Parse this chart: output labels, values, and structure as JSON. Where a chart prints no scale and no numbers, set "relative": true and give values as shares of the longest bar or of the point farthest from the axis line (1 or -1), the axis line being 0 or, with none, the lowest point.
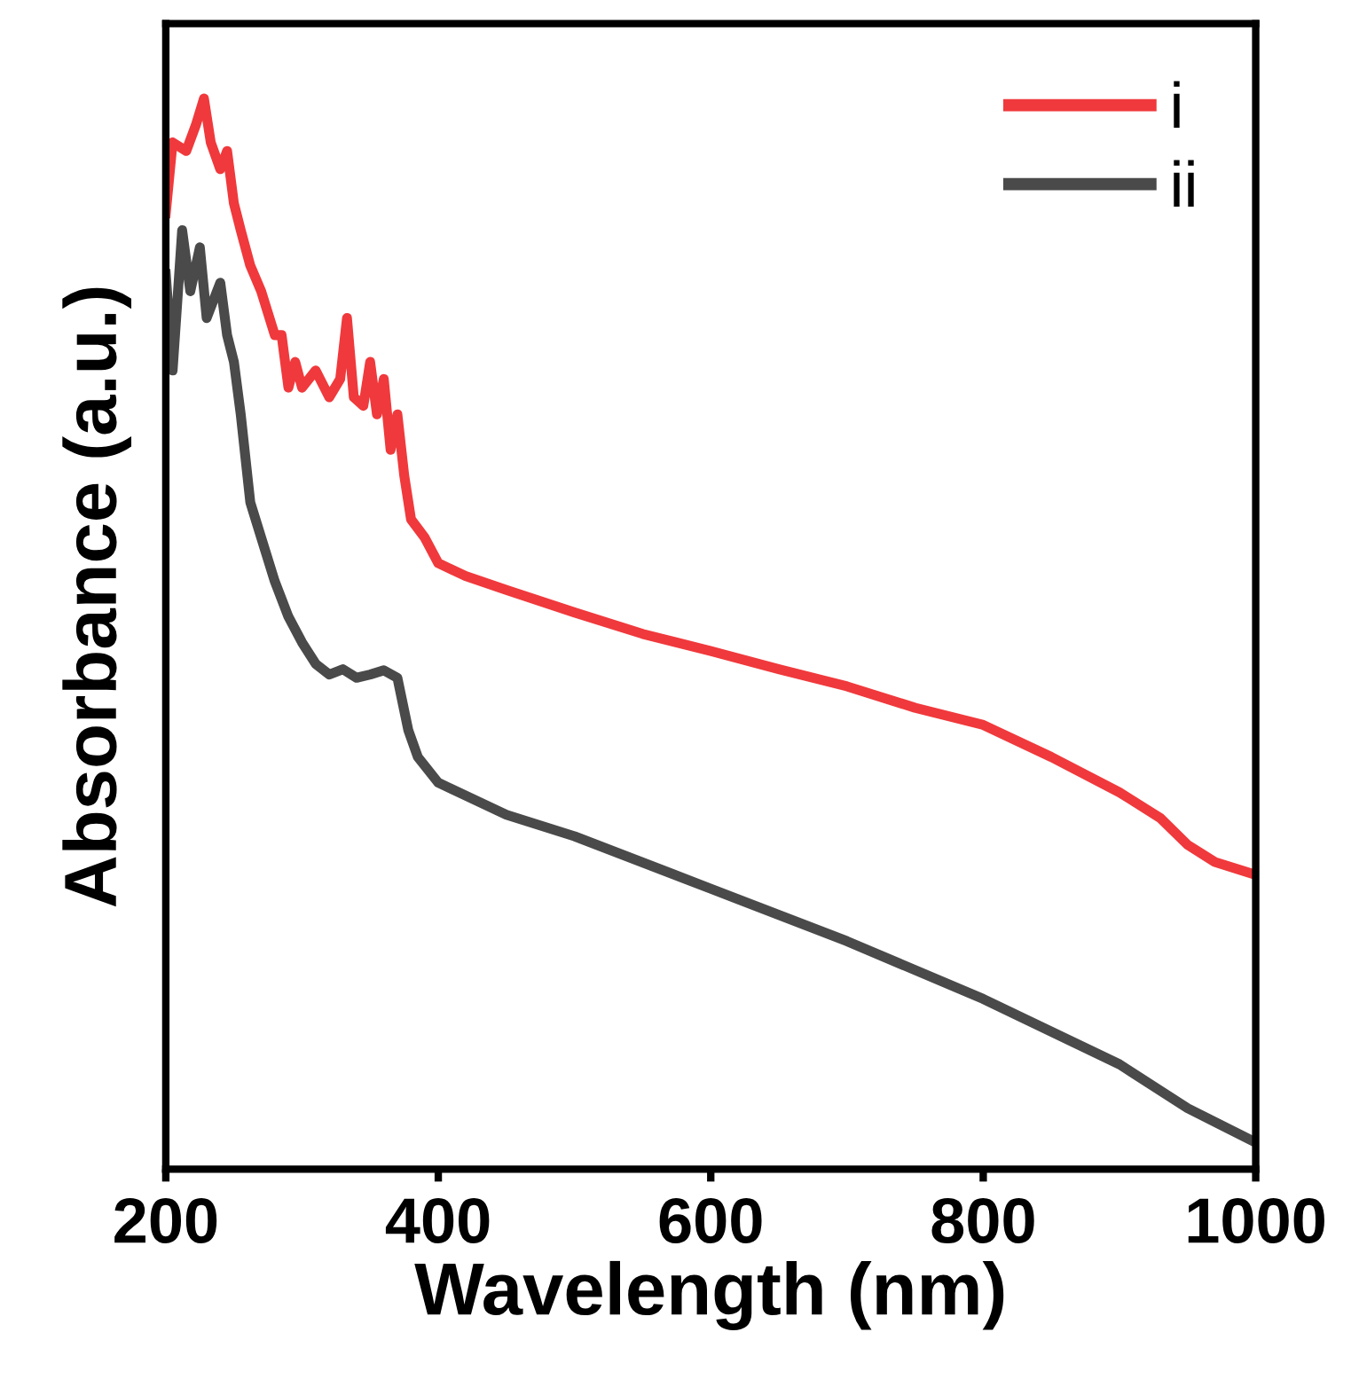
{
  "chart_data": {
    "type": "line",
    "relative": true,
    "xlabel": "Wavelength (nm)",
    "ylabel": "Absorbance (a.u.)",
    "xlim": [
      200,
      1000
    ],
    "xticks": [
      200,
      400,
      600,
      800,
      1000
    ],
    "legend": "top right",
    "grid": false,
    "line_style": "solid",
    "marker": "none",
    "series": [
      {
        "name": "i",
        "color": "#f0393c",
        "x": [
          200,
          205,
          215,
          222,
          228,
          233,
          240,
          245,
          250,
          255,
          262,
          270,
          280,
          285,
          290,
          295,
          300,
          310,
          320,
          328,
          333,
          338,
          345,
          350,
          355,
          360,
          365,
          370,
          375,
          380,
          390,
          400,
          420,
          450,
          500,
          550,
          600,
          650,
          700,
          750,
          800,
          850,
          900,
          930,
          950,
          970,
          1000
        ],
        "values": [
          0.893,
          0.959,
          0.951,
          0.975,
          1.0,
          0.959,
          0.934,
          0.951,
          0.902,
          0.877,
          0.844,
          0.82,
          0.779,
          0.779,
          0.73,
          0.754,
          0.73,
          0.746,
          0.721,
          0.738,
          0.795,
          0.721,
          0.713,
          0.754,
          0.705,
          0.738,
          0.672,
          0.705,
          0.648,
          0.607,
          0.59,
          0.566,
          0.554,
          0.541,
          0.52,
          0.5,
          0.484,
          0.467,
          0.451,
          0.431,
          0.415,
          0.385,
          0.352,
          0.328,
          0.303,
          0.287,
          0.275
        ]
      },
      {
        "name": "ii",
        "color": "#4a4a4a",
        "x": [
          200,
          205,
          212,
          218,
          225,
          230,
          240,
          245,
          250,
          255,
          262,
          270,
          280,
          290,
          300,
          310,
          320,
          330,
          340,
          350,
          360,
          370,
          378,
          385,
          400,
          450,
          500,
          600,
          700,
          800,
          900,
          950,
          1000
        ],
        "values": [
          0.836,
          0.746,
          0.877,
          0.82,
          0.861,
          0.795,
          0.828,
          0.779,
          0.754,
          0.705,
          0.623,
          0.59,
          0.549,
          0.516,
          0.492,
          0.472,
          0.462,
          0.467,
          0.459,
          0.462,
          0.466,
          0.459,
          0.41,
          0.385,
          0.361,
          0.331,
          0.311,
          0.262,
          0.213,
          0.159,
          0.098,
          0.057,
          0.025
        ]
      }
    ]
  }
}
